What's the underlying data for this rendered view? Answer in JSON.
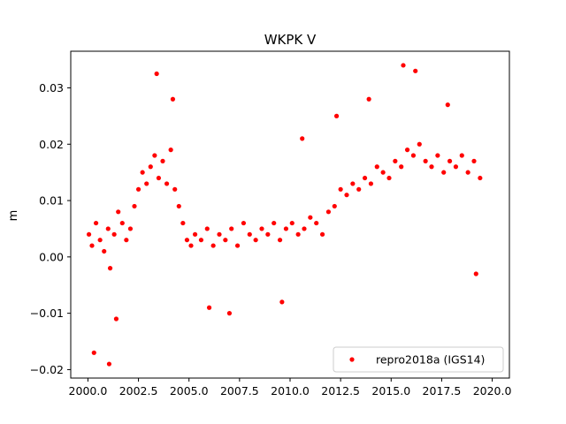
{
  "chart_data": {
    "type": "scatter",
    "title": "WKPK V",
    "xlabel": "",
    "ylabel": "m",
    "xlim": [
      1999.15,
      2020.85
    ],
    "ylim": [
      -0.0215,
      0.0365
    ],
    "xticks": [
      2000.0,
      2002.5,
      2005.0,
      2007.5,
      2010.0,
      2012.5,
      2015.0,
      2017.5,
      2020.0
    ],
    "xtick_labels": [
      "2000.0",
      "2002.5",
      "2005.0",
      "2007.5",
      "2010.0",
      "2012.5",
      "2015.0",
      "2017.5",
      "2020.0"
    ],
    "yticks": [
      -0.02,
      -0.01,
      0.0,
      0.01,
      0.02,
      0.03
    ],
    "ytick_labels": [
      "−0.02",
      "−0.01",
      "0.00",
      "0.01",
      "0.02",
      "0.03"
    ],
    "grid": false,
    "legend_position": "lower-right",
    "series": [
      {
        "name": "repro2018a (IGS14)",
        "color": "#ff0000",
        "marker": "circle",
        "x": [
          2000.05,
          2000.2,
          2000.4,
          2000.6,
          2000.8,
          2001.0,
          2001.1,
          2001.3,
          2001.5,
          2001.7,
          2001.9,
          2002.1,
          2002.3,
          2002.5,
          2002.7,
          2002.9,
          2003.1,
          2003.3,
          2003.5,
          2003.7,
          2003.9,
          2004.1,
          2004.3,
          2004.5,
          2004.7,
          2004.9,
          2005.1,
          2005.3,
          2005.6,
          2005.9,
          2006.2,
          2006.5,
          2006.8,
          2007.1,
          2007.4,
          2007.7,
          2008.0,
          2008.3,
          2008.6,
          2008.9,
          2009.2,
          2009.5,
          2009.8,
          2010.1,
          2010.4,
          2010.7,
          2011.0,
          2011.3,
          2011.6,
          2011.9,
          2012.2,
          2012.5,
          2012.8,
          2013.1,
          2013.4,
          2013.7,
          2014.0,
          2014.3,
          2014.6,
          2014.9,
          2015.2,
          2015.5,
          2015.8,
          2016.1,
          2016.4,
          2016.7,
          2017.0,
          2017.3,
          2017.6,
          2017.9,
          2018.2,
          2018.5,
          2018.8,
          2019.1,
          2019.4,
          2000.3,
          2001.05,
          2001.4,
          2003.4,
          2004.2,
          2006.0,
          2007.0,
          2009.6,
          2010.6,
          2012.3,
          2013.9,
          2015.6,
          2016.2,
          2017.8,
          2019.2
        ],
        "y": [
          0.004,
          0.002,
          0.006,
          0.003,
          0.001,
          0.005,
          -0.002,
          0.004,
          0.008,
          0.006,
          0.003,
          0.005,
          0.009,
          0.012,
          0.015,
          0.013,
          0.016,
          0.018,
          0.014,
          0.017,
          0.013,
          0.019,
          0.012,
          0.009,
          0.006,
          0.003,
          0.002,
          0.004,
          0.003,
          0.005,
          0.002,
          0.004,
          0.003,
          0.005,
          0.002,
          0.006,
          0.004,
          0.003,
          0.005,
          0.004,
          0.006,
          0.003,
          0.005,
          0.006,
          0.004,
          0.005,
          0.007,
          0.006,
          0.004,
          0.008,
          0.009,
          0.012,
          0.011,
          0.013,
          0.012,
          0.014,
          0.013,
          0.016,
          0.015,
          0.014,
          0.017,
          0.016,
          0.019,
          0.018,
          0.02,
          0.017,
          0.016,
          0.018,
          0.015,
          0.017,
          0.016,
          0.018,
          0.015,
          0.017,
          0.014,
          -0.017,
          -0.019,
          -0.011,
          0.0325,
          0.028,
          -0.009,
          -0.01,
          -0.008,
          0.021,
          0.025,
          0.028,
          0.034,
          0.033,
          0.027,
          -0.003
        ]
      }
    ]
  }
}
